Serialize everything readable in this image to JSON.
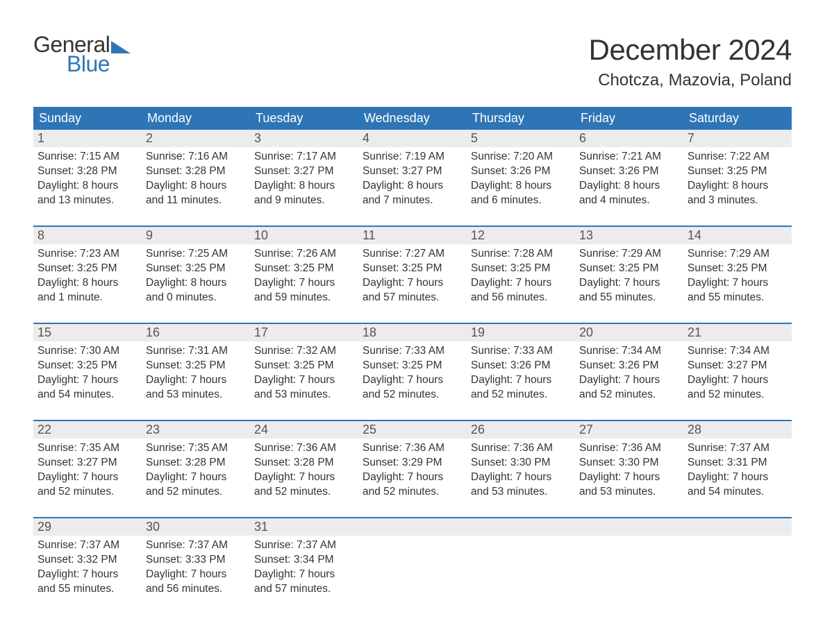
{
  "logo": {
    "word1": "General",
    "word2": "Blue",
    "flag_color": "#2e75b6"
  },
  "title": "December 2024",
  "location": "Chotcza, Mazovia, Poland",
  "palette": {
    "header_bg": "#2e75b6",
    "header_text": "#ffffff",
    "daynum_bg": "#ececec",
    "daynum_text": "#555555",
    "body_text": "#333333",
    "week_divider": "#2e75b6",
    "page_bg": "#ffffff"
  },
  "typography": {
    "title_fontsize": 42,
    "location_fontsize": 24,
    "weekday_fontsize": 18,
    "daynum_fontsize": 18,
    "content_fontsize": 15.5
  },
  "weekdays": [
    "Sunday",
    "Monday",
    "Tuesday",
    "Wednesday",
    "Thursday",
    "Friday",
    "Saturday"
  ],
  "labels": {
    "sunrise": "Sunrise:",
    "sunset": "Sunset:",
    "daylight": "Daylight:"
  },
  "weeks": [
    [
      {
        "d": "1",
        "sr": "7:15 AM",
        "ss": "3:28 PM",
        "dl1": "8 hours",
        "dl2": "and 13 minutes."
      },
      {
        "d": "2",
        "sr": "7:16 AM",
        "ss": "3:28 PM",
        "dl1": "8 hours",
        "dl2": "and 11 minutes."
      },
      {
        "d": "3",
        "sr": "7:17 AM",
        "ss": "3:27 PM",
        "dl1": "8 hours",
        "dl2": "and 9 minutes."
      },
      {
        "d": "4",
        "sr": "7:19 AM",
        "ss": "3:27 PM",
        "dl1": "8 hours",
        "dl2": "and 7 minutes."
      },
      {
        "d": "5",
        "sr": "7:20 AM",
        "ss": "3:26 PM",
        "dl1": "8 hours",
        "dl2": "and 6 minutes."
      },
      {
        "d": "6",
        "sr": "7:21 AM",
        "ss": "3:26 PM",
        "dl1": "8 hours",
        "dl2": "and 4 minutes."
      },
      {
        "d": "7",
        "sr": "7:22 AM",
        "ss": "3:25 PM",
        "dl1": "8 hours",
        "dl2": "and 3 minutes."
      }
    ],
    [
      {
        "d": "8",
        "sr": "7:23 AM",
        "ss": "3:25 PM",
        "dl1": "8 hours",
        "dl2": "and 1 minute."
      },
      {
        "d": "9",
        "sr": "7:25 AM",
        "ss": "3:25 PM",
        "dl1": "8 hours",
        "dl2": "and 0 minutes."
      },
      {
        "d": "10",
        "sr": "7:26 AM",
        "ss": "3:25 PM",
        "dl1": "7 hours",
        "dl2": "and 59 minutes."
      },
      {
        "d": "11",
        "sr": "7:27 AM",
        "ss": "3:25 PM",
        "dl1": "7 hours",
        "dl2": "and 57 minutes."
      },
      {
        "d": "12",
        "sr": "7:28 AM",
        "ss": "3:25 PM",
        "dl1": "7 hours",
        "dl2": "and 56 minutes."
      },
      {
        "d": "13",
        "sr": "7:29 AM",
        "ss": "3:25 PM",
        "dl1": "7 hours",
        "dl2": "and 55 minutes."
      },
      {
        "d": "14",
        "sr": "7:29 AM",
        "ss": "3:25 PM",
        "dl1": "7 hours",
        "dl2": "and 55 minutes."
      }
    ],
    [
      {
        "d": "15",
        "sr": "7:30 AM",
        "ss": "3:25 PM",
        "dl1": "7 hours",
        "dl2": "and 54 minutes."
      },
      {
        "d": "16",
        "sr": "7:31 AM",
        "ss": "3:25 PM",
        "dl1": "7 hours",
        "dl2": "and 53 minutes."
      },
      {
        "d": "17",
        "sr": "7:32 AM",
        "ss": "3:25 PM",
        "dl1": "7 hours",
        "dl2": "and 53 minutes."
      },
      {
        "d": "18",
        "sr": "7:33 AM",
        "ss": "3:25 PM",
        "dl1": "7 hours",
        "dl2": "and 52 minutes."
      },
      {
        "d": "19",
        "sr": "7:33 AM",
        "ss": "3:26 PM",
        "dl1": "7 hours",
        "dl2": "and 52 minutes."
      },
      {
        "d": "20",
        "sr": "7:34 AM",
        "ss": "3:26 PM",
        "dl1": "7 hours",
        "dl2": "and 52 minutes."
      },
      {
        "d": "21",
        "sr": "7:34 AM",
        "ss": "3:27 PM",
        "dl1": "7 hours",
        "dl2": "and 52 minutes."
      }
    ],
    [
      {
        "d": "22",
        "sr": "7:35 AM",
        "ss": "3:27 PM",
        "dl1": "7 hours",
        "dl2": "and 52 minutes."
      },
      {
        "d": "23",
        "sr": "7:35 AM",
        "ss": "3:28 PM",
        "dl1": "7 hours",
        "dl2": "and 52 minutes."
      },
      {
        "d": "24",
        "sr": "7:36 AM",
        "ss": "3:28 PM",
        "dl1": "7 hours",
        "dl2": "and 52 minutes."
      },
      {
        "d": "25",
        "sr": "7:36 AM",
        "ss": "3:29 PM",
        "dl1": "7 hours",
        "dl2": "and 52 minutes."
      },
      {
        "d": "26",
        "sr": "7:36 AM",
        "ss": "3:30 PM",
        "dl1": "7 hours",
        "dl2": "and 53 minutes."
      },
      {
        "d": "27",
        "sr": "7:36 AM",
        "ss": "3:30 PM",
        "dl1": "7 hours",
        "dl2": "and 53 minutes."
      },
      {
        "d": "28",
        "sr": "7:37 AM",
        "ss": "3:31 PM",
        "dl1": "7 hours",
        "dl2": "and 54 minutes."
      }
    ],
    [
      {
        "d": "29",
        "sr": "7:37 AM",
        "ss": "3:32 PM",
        "dl1": "7 hours",
        "dl2": "and 55 minutes."
      },
      {
        "d": "30",
        "sr": "7:37 AM",
        "ss": "3:33 PM",
        "dl1": "7 hours",
        "dl2": "and 56 minutes."
      },
      {
        "d": "31",
        "sr": "7:37 AM",
        "ss": "3:34 PM",
        "dl1": "7 hours",
        "dl2": "and 57 minutes."
      },
      null,
      null,
      null,
      null
    ]
  ]
}
